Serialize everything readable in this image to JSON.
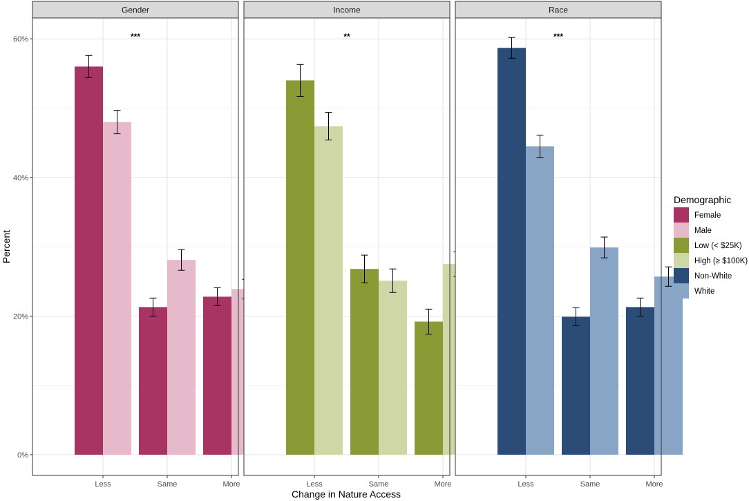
{
  "chart_data": {
    "type": "bar",
    "xlabel": "Change in Nature Access",
    "ylabel": "Percent",
    "ylim": [
      0,
      63
    ],
    "yticks": [
      0,
      20,
      40,
      60
    ],
    "ytick_labels": [
      "0%",
      "20%",
      "40%",
      "60%"
    ],
    "categories": [
      "Less",
      "Same",
      "More"
    ],
    "legend": {
      "title": "Demographic",
      "position": "right",
      "entries": [
        {
          "label": "Female",
          "color": "#A83463"
        },
        {
          "label": "Male",
          "color": "#E6BACB"
        },
        {
          "label": "Low (< $25K)",
          "color": "#8A9A35"
        },
        {
          "label": "High (≥ $100K)",
          "color": "#D0D7A6"
        },
        {
          "label": "Non-White",
          "color": "#2C4C78"
        },
        {
          "label": "White",
          "color": "#89A5C6"
        }
      ]
    },
    "facets": [
      {
        "title": "Gender",
        "significance": "***",
        "series": [
          {
            "name": "Female",
            "color": "#A83463",
            "values": [
              56.0,
              21.3,
              22.8
            ],
            "err": [
              1.6,
              1.3,
              1.3
            ]
          },
          {
            "name": "Male",
            "color": "#E6BACB",
            "values": [
              48.0,
              28.1,
              23.9
            ],
            "err": [
              1.7,
              1.5,
              1.4
            ]
          }
        ]
      },
      {
        "title": "Income",
        "significance": "**",
        "series": [
          {
            "name": "Low (< $25K)",
            "color": "#8A9A35",
            "values": [
              54.0,
              26.8,
              19.2
            ],
            "err": [
              2.3,
              2.0,
              1.8
            ]
          },
          {
            "name": "High (≥ $100K)",
            "color": "#D0D7A6",
            "values": [
              47.4,
              25.1,
              27.5
            ],
            "err": [
              2.0,
              1.7,
              1.8
            ]
          }
        ]
      },
      {
        "title": "Race",
        "significance": "***",
        "series": [
          {
            "name": "Non-White",
            "color": "#2C4C78",
            "values": [
              58.7,
              19.9,
              21.3
            ],
            "err": [
              1.5,
              1.3,
              1.3
            ]
          },
          {
            "name": "White",
            "color": "#89A5C6",
            "values": [
              44.5,
              29.9,
              25.7
            ],
            "err": [
              1.6,
              1.5,
              1.4
            ]
          }
        ]
      }
    ]
  }
}
